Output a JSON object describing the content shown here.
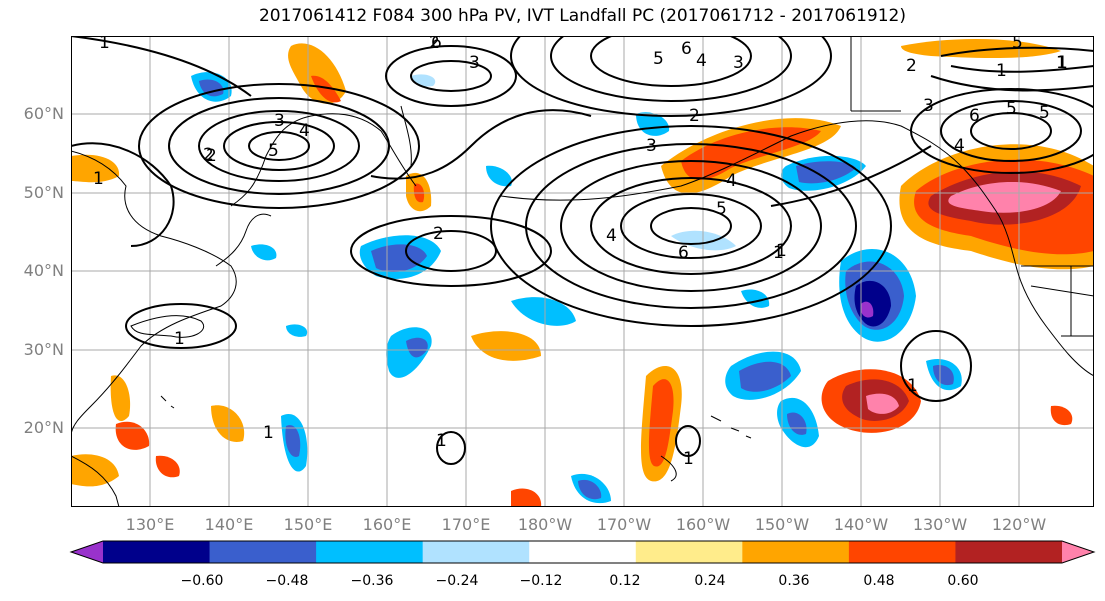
{
  "title": "2017061412 F084 300 hPa PV, IVT Landfall PC (2017061712 - 2017061912)",
  "lat_labels": [
    "60°N",
    "50°N",
    "40°N",
    "30°N",
    "20°N"
  ],
  "lon_labels": [
    "130°E",
    "140°E",
    "150°E",
    "160°E",
    "170°E",
    "180°W",
    "170°W",
    "160°W",
    "150°W",
    "140°W",
    "130°W",
    "120°W"
  ],
  "colorbar": {
    "ticks": [
      "−0.60",
      "−0.48",
      "−0.36",
      "−0.24",
      "−0.12",
      "0.12",
      "0.24",
      "0.36",
      "0.48",
      "0.60"
    ],
    "colors": [
      "#9932CC",
      "#00008B",
      "#3A5FCD",
      "#00BFFF",
      "#B0E2FF",
      "#FFFFFF",
      "#FFEC8B",
      "#FFA500",
      "#FF4500",
      "#B22222",
      "#FF82AB"
    ]
  },
  "contour_labels": [
    "1",
    "2",
    "3",
    "4",
    "5",
    "6",
    "6",
    "5",
    "4",
    "3",
    "2",
    "1",
    "2",
    "5",
    "3",
    "4",
    "5",
    "6",
    "1",
    "2",
    "3",
    "4",
    "6",
    "5",
    "2",
    "1",
    "1",
    "1",
    "1",
    "1",
    "1",
    "1",
    "1",
    "3",
    "2",
    "4",
    "5",
    "1"
  ]
}
